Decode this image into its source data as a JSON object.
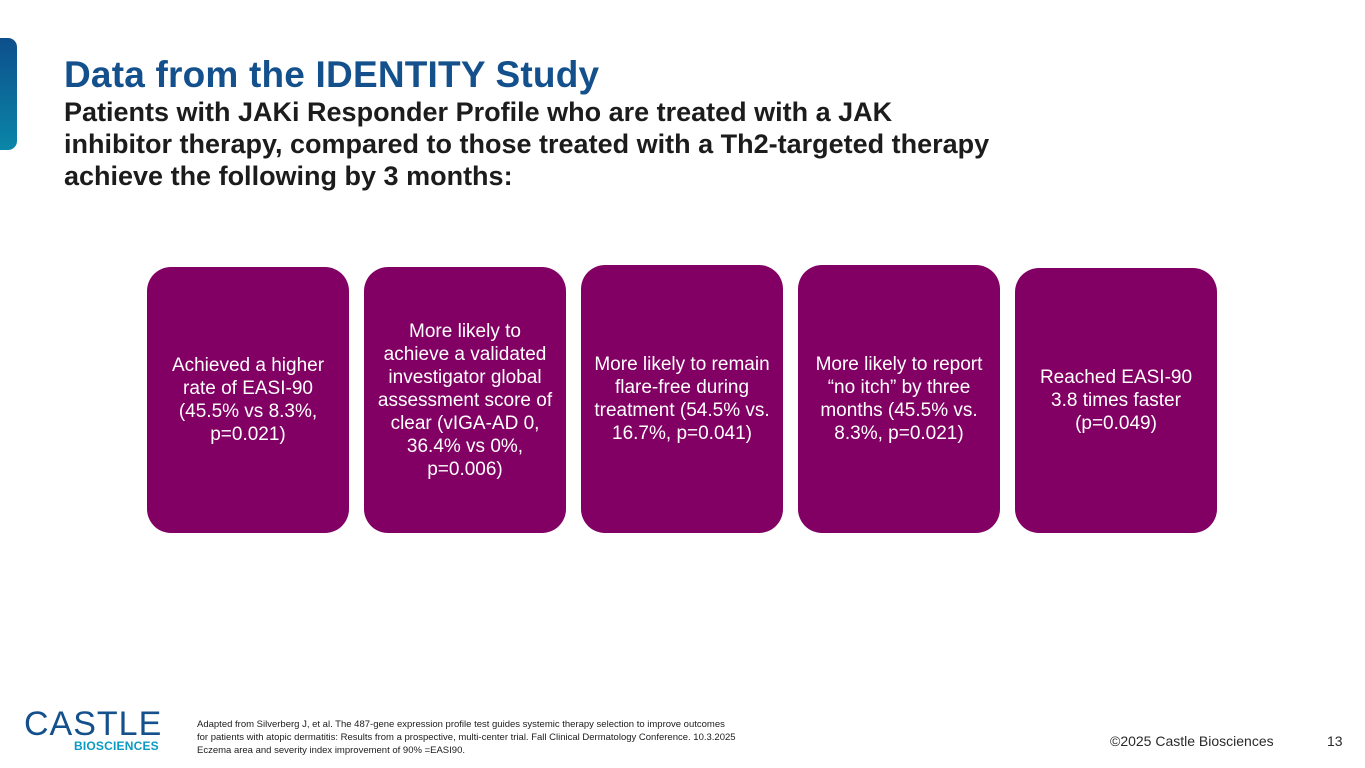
{
  "slide": {
    "title": "Data from the IDENTITY Study",
    "subtitle": "Patients with JAKi Responder Profile who are treated with a JAK inhibitor therapy, compared to those treated with a Th2-targeted therapy achieve the following by 3 months:",
    "cards": [
      {
        "text": "Achieved a higher rate of EASI-90 (45.5% vs 8.3%, p=0.021)"
      },
      {
        "text": "More likely to achieve a validated investigator global assessment score of clear (vIGA-AD 0, 36.4% vs 0%, p=0.006)"
      },
      {
        "text": "More likely to remain flare-free during treatment (54.5% vs. 16.7%, p=0.041)"
      },
      {
        "text": "More likely to report “no itch” by three months (45.5% vs. 8.3%, p=0.021)"
      },
      {
        "text": "Reached EASI-90 3.8 times faster (p=0.049)"
      }
    ],
    "colors": {
      "title": "#13508c",
      "card": "#820064",
      "accent": "#0a86a8"
    }
  },
  "footer": {
    "logo_main": "CASTLE",
    "logo_sub": "BIOSCIENCES",
    "references": [
      "Adapted from Silverberg J, et al. The 487-gene expression profile test guides systemic therapy selection to improve outcomes",
      "for patients with atopic dermatitis: Results from a prospective, multi-center trial. Fall Clinical Dermatology Conference. 10.3.2025",
      "Eczema area and severity index improvement of 90% =EASI90."
    ],
    "copyright": "©2025 Castle Biosciences",
    "page_number": "13"
  }
}
